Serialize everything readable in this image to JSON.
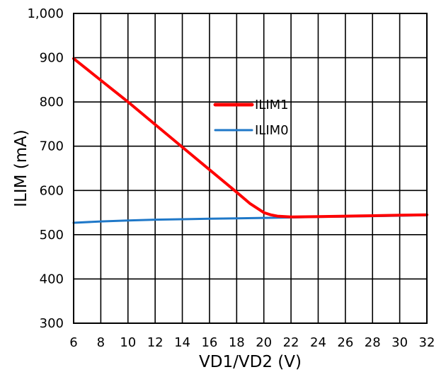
{
  "chart_data": {
    "type": "line",
    "title": "",
    "xlabel": "VD1/VD2 (V)",
    "ylabel": "ILIM (mA)",
    "xlim": [
      6,
      32
    ],
    "ylim": [
      300,
      1000
    ],
    "xticks": [
      6,
      8,
      10,
      12,
      14,
      16,
      18,
      20,
      22,
      24,
      26,
      28,
      30,
      32
    ],
    "xtick_labels": [
      "6",
      "8",
      "10",
      "12",
      "14",
      "16",
      "18",
      "20",
      "22",
      "24",
      "26",
      "28",
      "30",
      "32"
    ],
    "yticks": [
      300,
      400,
      500,
      600,
      700,
      800,
      900,
      1000
    ],
    "ytick_labels": [
      "300",
      "400",
      "500",
      "600",
      "700",
      "800",
      "900",
      "1,000"
    ],
    "grid": true,
    "legend_position": "center",
    "series": [
      {
        "name": "ILIM1",
        "color": "#ff0000",
        "x": [
          6,
          8,
          10,
          12,
          14,
          16,
          18,
          19,
          20,
          20.5,
          21,
          22,
          24,
          26,
          28,
          30,
          32
        ],
        "y": [
          898,
          849,
          800,
          749,
          698,
          647,
          596,
          570,
          550,
          545,
          542,
          540,
          541,
          542,
          543,
          544,
          545
        ]
      },
      {
        "name": "ILIM0",
        "color": "#1f78c8",
        "x": [
          6,
          8,
          10,
          12,
          14,
          16,
          18,
          20,
          22,
          24,
          26,
          28,
          30,
          32
        ],
        "y": [
          527,
          530,
          532,
          534,
          535,
          536,
          537,
          538,
          539,
          540,
          541,
          542,
          543,
          544
        ]
      }
    ]
  }
}
